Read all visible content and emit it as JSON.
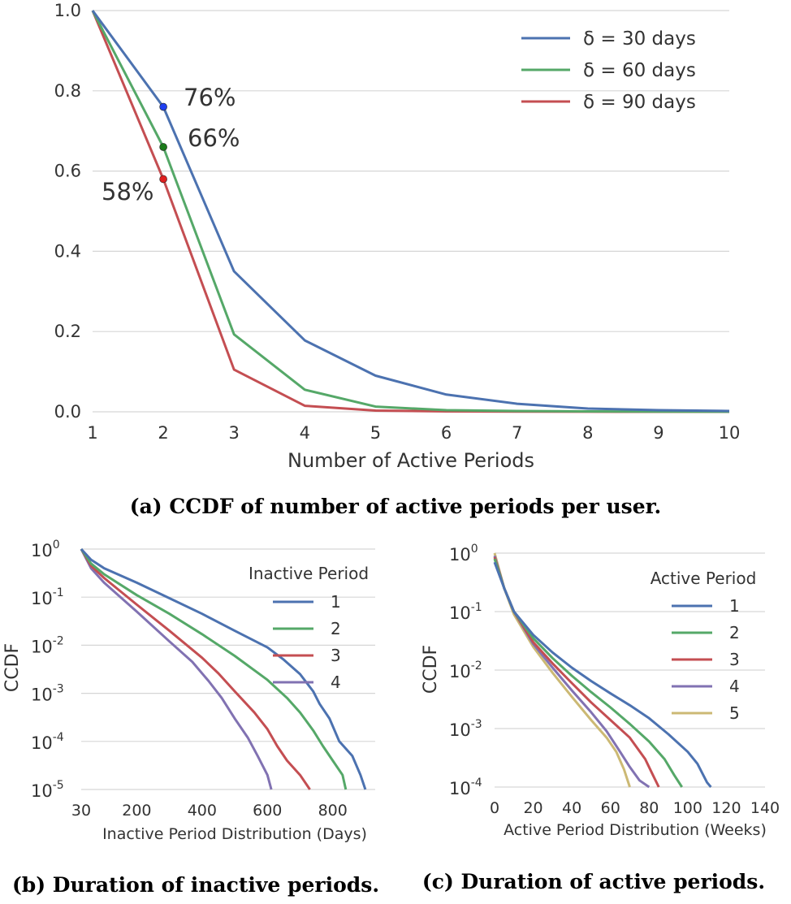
{
  "colors": {
    "blue": "#4c72b0",
    "green": "#55a868",
    "red": "#c44e52",
    "purple": "#8172b2",
    "yellow": "#ccb974"
  },
  "chart_data": [
    {
      "type": "line",
      "caption": "(a) CCDF of number of active periods per user.",
      "xlabel": "Number of Active Periods",
      "ylabel": "",
      "xlim": [
        1,
        10
      ],
      "ylim": [
        0,
        1
      ],
      "grid": true,
      "legend_placement": "top-right",
      "xticks": [
        "1",
        "2",
        "3",
        "4",
        "5",
        "6",
        "7",
        "8",
        "9",
        "10"
      ],
      "yticks": [
        "0.0",
        "0.2",
        "0.4",
        "0.6",
        "0.8",
        "1.0"
      ],
      "x": [
        1,
        2,
        3,
        4,
        5,
        6,
        7,
        8,
        9,
        10
      ],
      "series": [
        {
          "name": "δ = 30 days",
          "color": "#4c72b0",
          "values": [
            1.0,
            0.76,
            0.35,
            0.178,
            0.09,
            0.043,
            0.02,
            0.008,
            0.004,
            0.002
          ]
        },
        {
          "name": "δ = 60 days",
          "color": "#55a868",
          "values": [
            1.0,
            0.66,
            0.193,
            0.055,
            0.013,
            0.004,
            0.002,
            0.001,
            0.0005,
            0.0002
          ]
        },
        {
          "name": "δ = 90 days",
          "color": "#c44e52",
          "values": [
            1.0,
            0.58,
            0.105,
            0.015,
            0.003,
            0.001,
            0.0005,
            0.0002,
            0.0001,
            0.0
          ]
        }
      ],
      "annotations": [
        {
          "text": "76%",
          "x": 2,
          "y": 0.76,
          "color": "#1f3ff0"
        },
        {
          "text": "66%",
          "x": 2,
          "y": 0.66,
          "color": "#1a7a1a"
        },
        {
          "text": "58%",
          "x": 2,
          "y": 0.58,
          "color": "#e02020"
        }
      ]
    },
    {
      "type": "line",
      "caption": "(b) Duration of inactive periods.",
      "xlabel": "Inactive Period Distribution (Days)",
      "ylabel": "CCDF",
      "xlim": [
        30,
        930
      ],
      "ylim": [
        1e-05,
        1
      ],
      "yscale": "log",
      "grid": true,
      "legend_title": "Inactive Period",
      "legend_placement": "top-right",
      "xticks": [
        {
          "v": 30,
          "t": "30"
        },
        {
          "v": 200,
          "t": "200"
        },
        {
          "v": 400,
          "t": "400"
        },
        {
          "v": 600,
          "t": "600"
        },
        {
          "v": 800,
          "t": "800"
        }
      ],
      "yticks": [
        {
          "v": 0,
          "t": "0"
        },
        {
          "v": -1,
          "t": "-1"
        },
        {
          "v": -2,
          "t": "-2"
        },
        {
          "v": -3,
          "t": "-3"
        },
        {
          "v": -4,
          "t": "-4"
        },
        {
          "v": -5,
          "t": "-5"
        }
      ],
      "series": [
        {
          "name": "1",
          "color": "#4c72b0",
          "points": [
            [
              30,
              1.0
            ],
            [
              60,
              0.6
            ],
            [
              100,
              0.4
            ],
            [
              200,
              0.2
            ],
            [
              300,
              0.095
            ],
            [
              400,
              0.045
            ],
            [
              500,
              0.02
            ],
            [
              600,
              0.009
            ],
            [
              650,
              0.005
            ],
            [
              700,
              0.0025
            ],
            [
              740,
              0.0011
            ],
            [
              760,
              0.0006
            ],
            [
              790,
              0.0003
            ],
            [
              820,
              0.0001
            ],
            [
              860,
              5e-05
            ],
            [
              885,
              2e-05
            ],
            [
              900,
              1e-05
            ]
          ]
        },
        {
          "name": "2",
          "color": "#55a868",
          "points": [
            [
              30,
              1.0
            ],
            [
              60,
              0.5
            ],
            [
              100,
              0.3
            ],
            [
              200,
              0.11
            ],
            [
              300,
              0.045
            ],
            [
              400,
              0.017
            ],
            [
              500,
              0.006
            ],
            [
              600,
              0.0019
            ],
            [
              660,
              0.0008
            ],
            [
              700,
              0.0004
            ],
            [
              740,
              0.00017
            ],
            [
              770,
              8e-05
            ],
            [
              800,
              4e-05
            ],
            [
              830,
              2e-05
            ],
            [
              840,
              1e-05
            ]
          ]
        },
        {
          "name": "3",
          "color": "#c44e52",
          "points": [
            [
              30,
              1.0
            ],
            [
              60,
              0.45
            ],
            [
              100,
              0.25
            ],
            [
              200,
              0.07
            ],
            [
              300,
              0.02
            ],
            [
              400,
              0.0055
            ],
            [
              450,
              0.0026
            ],
            [
              500,
              0.0011
            ],
            [
              560,
              0.0004
            ],
            [
              600,
              0.00018
            ],
            [
              630,
              8e-05
            ],
            [
              660,
              4e-05
            ],
            [
              700,
              2e-05
            ],
            [
              730,
              1e-05
            ]
          ]
        },
        {
          "name": "4",
          "color": "#8172b2",
          "points": [
            [
              30,
              1.0
            ],
            [
              60,
              0.4
            ],
            [
              100,
              0.2
            ],
            [
              200,
              0.05
            ],
            [
              300,
              0.012
            ],
            [
              370,
              0.0045
            ],
            [
              420,
              0.0018
            ],
            [
              460,
              0.0008
            ],
            [
              500,
              0.0003
            ],
            [
              540,
              0.00012
            ],
            [
              570,
              5e-05
            ],
            [
              600,
              2e-05
            ],
            [
              612,
              1e-05
            ]
          ]
        }
      ]
    },
    {
      "type": "line",
      "caption": "(c) Duration of active periods.",
      "xlabel": "Active Period Distribution (Weeks)",
      "ylabel": "CCDF",
      "xlim": [
        0,
        140
      ],
      "ylim": [
        0.0001,
        1
      ],
      "yscale": "log",
      "grid": true,
      "legend_title": "Active Period",
      "legend_placement": "top-right",
      "xticks": [
        {
          "v": 0,
          "t": "0"
        },
        {
          "v": 20,
          "t": "20"
        },
        {
          "v": 40,
          "t": "40"
        },
        {
          "v": 60,
          "t": "60"
        },
        {
          "v": 80,
          "t": "80"
        },
        {
          "v": 100,
          "t": "100"
        },
        {
          "v": 120,
          "t": "120"
        },
        {
          "v": 140,
          "t": "140"
        }
      ],
      "yticks": [
        {
          "v": 0,
          "t": "0"
        },
        {
          "v": -1,
          "t": "-1"
        },
        {
          "v": -2,
          "t": "-2"
        },
        {
          "v": -3,
          "t": "-3"
        },
        {
          "v": -4,
          "t": "-4"
        }
      ],
      "series": [
        {
          "name": "1",
          "color": "#4c72b0",
          "points": [
            [
              0,
              0.7
            ],
            [
              5,
              0.25
            ],
            [
              10,
              0.1
            ],
            [
              20,
              0.04
            ],
            [
              30,
              0.02
            ],
            [
              40,
              0.011
            ],
            [
              50,
              0.0065
            ],
            [
              60,
              0.004
            ],
            [
              70,
              0.0025
            ],
            [
              80,
              0.0015
            ],
            [
              90,
              0.0008
            ],
            [
              100,
              0.0004
            ],
            [
              105,
              0.00025
            ],
            [
              110,
              0.00012
            ],
            [
              112,
              0.0001
            ]
          ]
        },
        {
          "name": "2",
          "color": "#55a868",
          "points": [
            [
              0,
              0.8
            ],
            [
              5,
              0.25
            ],
            [
              10,
              0.1
            ],
            [
              20,
              0.035
            ],
            [
              30,
              0.016
            ],
            [
              40,
              0.008
            ],
            [
              50,
              0.0042
            ],
            [
              60,
              0.0023
            ],
            [
              70,
              0.0012
            ],
            [
              80,
              0.0006
            ],
            [
              88,
              0.0003
            ],
            [
              93,
              0.00016
            ],
            [
              97,
              0.0001
            ]
          ]
        },
        {
          "name": "3",
          "color": "#c44e52",
          "points": [
            [
              0,
              0.85
            ],
            [
              5,
              0.25
            ],
            [
              10,
              0.1
            ],
            [
              20,
              0.03
            ],
            [
              30,
              0.013
            ],
            [
              40,
              0.006
            ],
            [
              50,
              0.0028
            ],
            [
              60,
              0.0014
            ],
            [
              70,
              0.0007
            ],
            [
              78,
              0.0003
            ],
            [
              82,
              0.00016
            ],
            [
              85,
              0.0001
            ]
          ]
        },
        {
          "name": "4",
          "color": "#8172b2",
          "points": [
            [
              0,
              0.9
            ],
            [
              5,
              0.25
            ],
            [
              10,
              0.1
            ],
            [
              20,
              0.028
            ],
            [
              30,
              0.011
            ],
            [
              40,
              0.0045
            ],
            [
              50,
              0.0019
            ],
            [
              58,
              0.0009
            ],
            [
              65,
              0.0004
            ],
            [
              70,
              0.00022
            ],
            [
              75,
              0.00013
            ],
            [
              80,
              0.0001
            ]
          ]
        },
        {
          "name": "5",
          "color": "#ccb974",
          "points": [
            [
              0,
              1.0
            ],
            [
              5,
              0.25
            ],
            [
              10,
              0.09
            ],
            [
              20,
              0.025
            ],
            [
              30,
              0.009
            ],
            [
              40,
              0.0035
            ],
            [
              50,
              0.0014
            ],
            [
              58,
              0.0007
            ],
            [
              63,
              0.0004
            ],
            [
              67,
              0.0002
            ],
            [
              70,
              0.0001
            ]
          ]
        }
      ]
    }
  ]
}
